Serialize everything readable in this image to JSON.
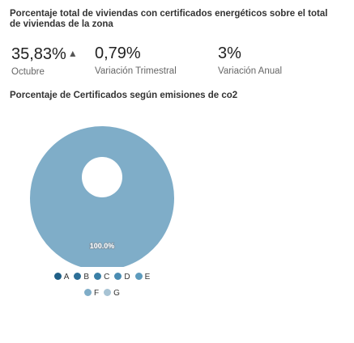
{
  "header": {
    "title": "Porcentaje total de viviendas con certificados energéticos sobre el total de viviendas de la zona"
  },
  "kpis": [
    {
      "value": "35,83%",
      "trend": "▲",
      "label": "Octubre"
    },
    {
      "value": "0,79%",
      "trend": "",
      "label": "Variación Trimestral"
    },
    {
      "value": "3%",
      "trend": "",
      "label": "Variación Anual"
    }
  ],
  "colors": {
    "pie_fill": "#a7c3d4",
    "center_hole": "#ffffff",
    "text": "#222222",
    "muted_text": "#666666"
  },
  "chart_data": {
    "type": "pie",
    "title": "Porcentaje de Certificados según emisiones de co2",
    "categories": [
      "A",
      "B",
      "C",
      "D",
      "E",
      "F",
      "G"
    ],
    "values": [
      0,
      0,
      0,
      0,
      0,
      100,
      0
    ],
    "data_labels": [
      "",
      "",
      "",
      "",
      "",
      "100.0%",
      ""
    ],
    "legend_position": "bottom",
    "legend": [
      {
        "label": "A",
        "color": "#1f5f86"
      },
      {
        "label": "B",
        "color": "#2d6f97"
      },
      {
        "label": "C",
        "color": "#3a7fa6"
      },
      {
        "label": "D",
        "color": "#4a8cb2"
      },
      {
        "label": "E",
        "color": "#5d9bbd"
      },
      {
        "label": "F",
        "color": "#7fadc8"
      },
      {
        "label": "G",
        "color": "#a7c3d4"
      }
    ]
  }
}
